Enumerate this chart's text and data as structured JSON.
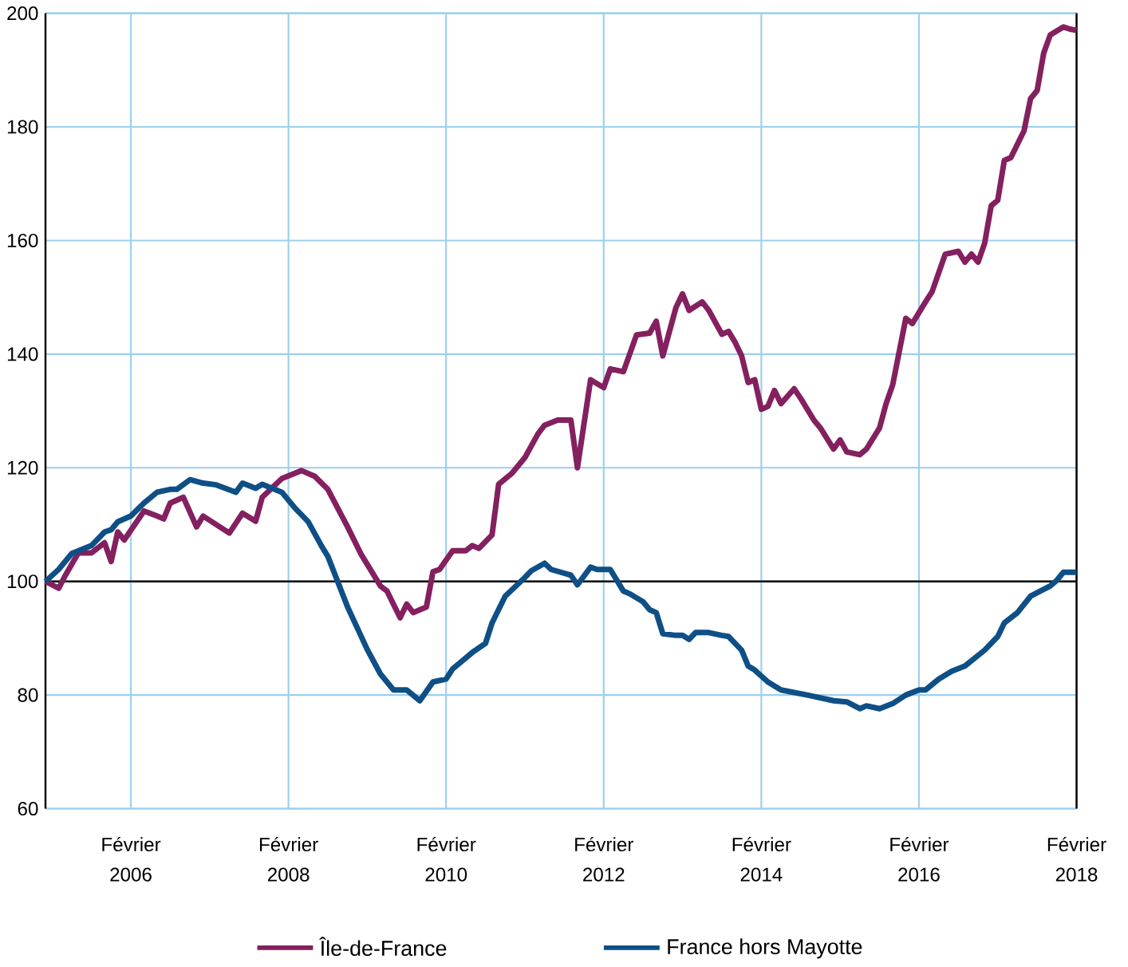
{
  "chart_data": {
    "type": "line",
    "xlim": [
      "2005-01",
      "2018-02"
    ],
    "ylim": [
      60,
      200
    ],
    "xticks": [
      {
        "value": "2006-02",
        "label": "Février 2006"
      },
      {
        "value": "2008-02",
        "label": "Février 2008"
      },
      {
        "value": "2010-02",
        "label": "Février 2010"
      },
      {
        "value": "2012-02",
        "label": "Février 2012"
      },
      {
        "value": "2014-02",
        "label": "Février 2014"
      },
      {
        "value": "2016-02",
        "label": "Février 2016"
      },
      {
        "value": "2018-02",
        "label": "Février 2018"
      }
    ],
    "yticks": [
      60,
      80,
      100,
      120,
      140,
      160,
      180,
      200
    ],
    "grid": true,
    "legend": "bottom",
    "line_style": "solid",
    "marker": "none",
    "ref_lines": [
      {
        "axis": "y",
        "value": 100,
        "color": "#000000"
      }
    ],
    "series": [
      {
        "name": "Île-de-France",
        "color": "#84205f",
        "x": [
          "2005-01",
          "2005-03",
          "2005-04",
          "2005-06",
          "2005-08",
          "2005-10",
          "2005-11",
          "2005-12",
          "2006-01",
          "2006-04",
          "2006-06",
          "2006-07",
          "2006-08",
          "2006-10",
          "2006-12",
          "2007-01",
          "2007-05",
          "2007-07",
          "2007-09",
          "2007-10",
          "2008-01",
          "2008-04",
          "2008-06",
          "2008-08",
          "2008-11",
          "2009-01",
          "2009-04",
          "2009-05",
          "2009-07",
          "2009-08",
          "2009-09",
          "2009-11",
          "2009-12",
          "2010-01",
          "2010-03",
          "2010-05",
          "2010-06",
          "2010-07",
          "2010-09",
          "2010-10",
          "2010-12",
          "2011-02",
          "2011-04",
          "2011-05",
          "2011-07",
          "2011-09",
          "2011-10",
          "2011-12",
          "2012-02",
          "2012-03",
          "2012-05",
          "2012-07",
          "2012-09",
          "2012-10",
          "2012-11",
          "2013-01",
          "2013-02",
          "2013-03",
          "2013-05",
          "2013-06",
          "2013-08",
          "2013-09",
          "2013-10",
          "2013-11",
          "2013-12",
          "2014-01",
          "2014-02",
          "2014-03",
          "2014-04",
          "2014-05",
          "2014-07",
          "2014-08",
          "2014-10",
          "2014-11",
          "2015-01",
          "2015-02",
          "2015-03",
          "2015-05",
          "2015-06",
          "2015-08",
          "2015-09",
          "2015-10",
          "2015-12",
          "2016-01",
          "2016-03",
          "2016-04",
          "2016-06",
          "2016-08",
          "2016-09",
          "2016-10",
          "2016-11",
          "2016-12",
          "2017-01",
          "2017-02",
          "2017-03",
          "2017-04",
          "2017-06",
          "2017-07",
          "2017-08",
          "2017-09",
          "2017-10",
          "2017-12",
          "2018-01",
          "2018-02"
        ],
        "values": [
          100,
          98.8,
          101,
          105,
          105,
          106.8,
          103.5,
          108.7,
          107.3,
          112.4,
          111.5,
          111,
          113.8,
          114.8,
          109.6,
          111.5,
          108.5,
          112,
          110.6,
          114.8,
          118.1,
          119.5,
          118.5,
          116.2,
          109.6,
          104.9,
          99.2,
          98.3,
          93.6,
          96,
          94.5,
          95.5,
          101.7,
          102.1,
          105.4,
          105.4,
          106.3,
          105.8,
          108.2,
          117.1,
          119,
          121.8,
          126,
          127.5,
          128.4,
          128.4,
          120,
          135.5,
          134.1,
          137.4,
          136.9,
          143.4,
          143.7,
          145.8,
          139.7,
          148.2,
          150.6,
          147.7,
          149.2,
          147.7,
          143.5,
          144,
          142.1,
          139.7,
          135,
          135.5,
          130.3,
          130.8,
          133.6,
          131.3,
          133.9,
          132.2,
          128.4,
          127,
          123.3,
          124.9,
          122.8,
          122.3,
          123.3,
          127,
          131.3,
          134.6,
          146.3,
          145.4,
          149.2,
          151,
          157.6,
          158.1,
          156.2,
          157.6,
          156.2,
          159.5,
          166.1,
          167.1,
          174.1,
          174.6,
          179.3,
          185,
          186.4,
          193,
          196.2,
          197.6,
          197.2,
          197
        ]
      },
      {
        "name": "France hors Mayotte",
        "color": "#0e4f86",
        "x": [
          "2005-01",
          "2005-03",
          "2005-05",
          "2005-08",
          "2005-10",
          "2005-11",
          "2005-12",
          "2006-02",
          "2006-04",
          "2006-06",
          "2006-08",
          "2006-09",
          "2006-11",
          "2007-01",
          "2007-03",
          "2007-06",
          "2007-07",
          "2007-09",
          "2007-10",
          "2008-01",
          "2008-03",
          "2008-05",
          "2008-07",
          "2008-08",
          "2008-11",
          "2009-02",
          "2009-04",
          "2009-06",
          "2009-08",
          "2009-10",
          "2009-12",
          "2010-02",
          "2010-03",
          "2010-06",
          "2010-08",
          "2010-09",
          "2010-11",
          "2011-02",
          "2011-03",
          "2011-05",
          "2011-06",
          "2011-09",
          "2011-10",
          "2011-12",
          "2012-01",
          "2012-03",
          "2012-05",
          "2012-06",
          "2012-08",
          "2012-09",
          "2012-10",
          "2012-11",
          "2013-01",
          "2013-02",
          "2013-03",
          "2013-04",
          "2013-06",
          "2013-08",
          "2013-09",
          "2013-11",
          "2013-12",
          "2014-01",
          "2014-03",
          "2014-05",
          "2014-09",
          "2014-11",
          "2015-01",
          "2015-03",
          "2015-05",
          "2015-06",
          "2015-08",
          "2015-10",
          "2015-12",
          "2016-02",
          "2016-03",
          "2016-05",
          "2016-07",
          "2016-09",
          "2016-12",
          "2017-02",
          "2017-03",
          "2017-05",
          "2017-07",
          "2017-10",
          "2017-11",
          "2017-12",
          "2018-02"
        ],
        "values": [
          100,
          102.1,
          104.9,
          106.3,
          108.7,
          109.1,
          110.5,
          111.5,
          113.8,
          115.7,
          116.2,
          116.2,
          117.9,
          117.3,
          117,
          115.7,
          117.3,
          116.4,
          117.1,
          115.7,
          112.9,
          110.5,
          106.3,
          104.4,
          95.5,
          88,
          83.7,
          80.9,
          80.9,
          79,
          82.3,
          82.8,
          84.6,
          87.5,
          89.1,
          92.7,
          97.4,
          100.7,
          101.9,
          103.2,
          102.1,
          101.1,
          99.4,
          102.5,
          102.1,
          102.1,
          98.3,
          97.8,
          96.4,
          95,
          94.5,
          90.8,
          90.5,
          90.5,
          89.8,
          91,
          91,
          90.5,
          90.3,
          87.9,
          85.1,
          84.4,
          82.3,
          80.9,
          80,
          79.5,
          79,
          78.8,
          77.6,
          78.1,
          77.6,
          78.5,
          80,
          80.9,
          80.9,
          82.8,
          84.2,
          85.1,
          87.9,
          90.3,
          92.7,
          94.5,
          97.4,
          99.2,
          100.2,
          101.6,
          101.6
        ]
      }
    ]
  }
}
